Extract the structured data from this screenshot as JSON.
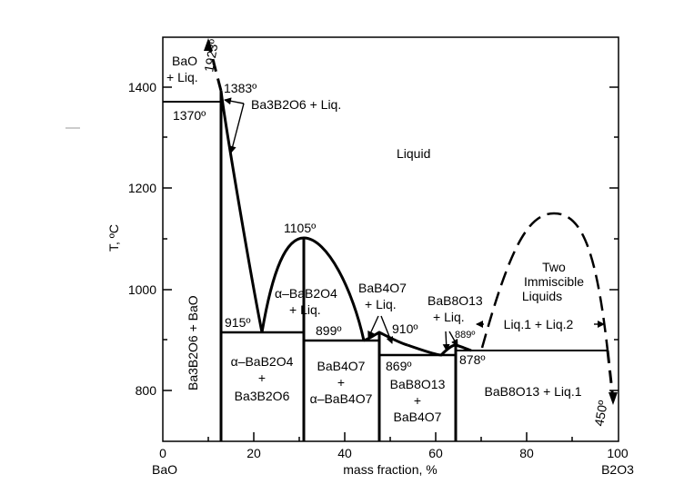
{
  "axes": {
    "y_label": "T, ºC",
    "x_label": "mass fraction, %",
    "x_left_component": "BaO",
    "x_right_component": "B2O3",
    "x_ticks": [
      "0",
      "20",
      "40",
      "60",
      "80",
      "100"
    ],
    "y_ticks": [
      "800",
      "1000",
      "1200",
      "1400"
    ]
  },
  "temperatures": {
    "t1923": "1923º",
    "t1383": "1383º",
    "t1370": "1370º",
    "t1105": "1105º",
    "t915": "915º",
    "t899": "899º",
    "t910": "910º",
    "t869": "869º",
    "t889": "889º",
    "t878": "878º",
    "t450": "450º"
  },
  "regions": {
    "bao_liq": [
      "BaO",
      "+ Liq."
    ],
    "ba3b2o6_liq": "Ba3B2O6 + Liq.",
    "liquid": "Liquid",
    "ba3b2o6_bao": "Ba3B2O6 + BaO",
    "alpha_bab2o4_liq": [
      "α–BaB2O4",
      "+ Liq."
    ],
    "bab4o7_liq": [
      "BaB4O7",
      "+ Liq."
    ],
    "bab8o13_liq": [
      "BaB8O13",
      "+ Liq."
    ],
    "two_immiscible": [
      "Two",
      "Immiscible",
      "Liquids"
    ],
    "liq1_liq2": "Liq.1 + Liq.2",
    "alpha_bab2o4_ba3b2o6": [
      "α–BaB2O4",
      "+",
      "Ba3B2O6"
    ],
    "bab4o7_alpha": [
      "BaB4O7",
      "+",
      "α–BaB4O7"
    ],
    "bab8o13_bab4o7": [
      "BaB8O13",
      "+",
      "BaB4O7"
    ],
    "bab8o13_liq1": "BaB8O13 + Liq.1"
  }
}
